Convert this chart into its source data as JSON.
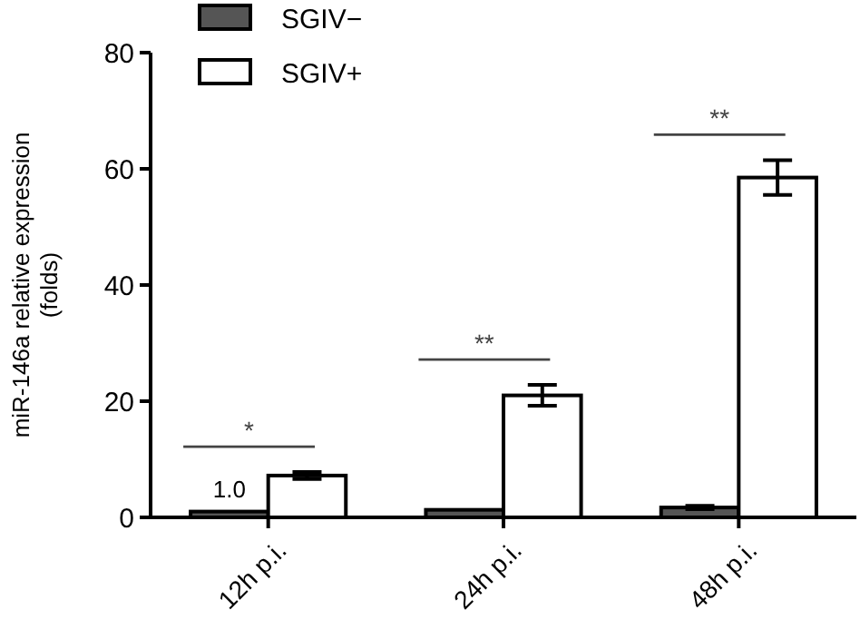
{
  "chart_data": {
    "type": "bar",
    "ylabel": "miR-146a relative expression\n(folds)",
    "categories": [
      "12h p.i.",
      "24h p.i.",
      "48h p.i."
    ],
    "series": [
      {
        "name": "SGIV−",
        "color": "#555555",
        "values": [
          1.0,
          1.3,
          1.7
        ],
        "errors": [
          null,
          null,
          0.3
        ],
        "value_labels": [
          "1.0",
          null,
          null
        ]
      },
      {
        "name": "SGIV+",
        "color": "#ffffff",
        "values": [
          7.2,
          21,
          58.5
        ],
        "errors": [
          0.6,
          1.8,
          3
        ]
      }
    ],
    "ylim": [
      0,
      80
    ],
    "yticks": [
      0,
      20,
      40,
      60,
      80
    ],
    "grid": false,
    "legend": "top left",
    "annotations": [
      "*",
      "**",
      "**"
    ]
  }
}
